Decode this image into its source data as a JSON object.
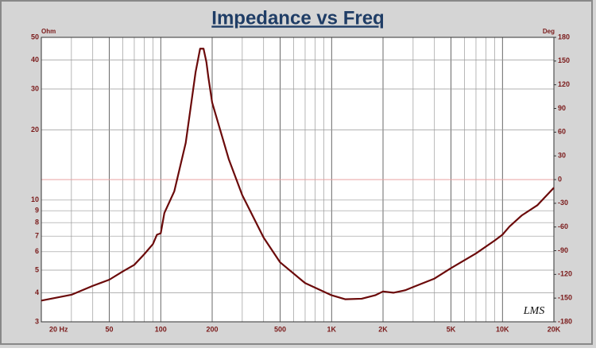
{
  "chart_data": {
    "type": "line",
    "title": "Impedance vs Freq",
    "y_label": "Ohm",
    "y2_label": "Deg",
    "annotation": "LMS",
    "x": [
      20,
      30,
      40,
      50,
      60,
      70,
      80,
      90,
      95,
      100,
      105,
      120,
      140,
      160,
      170,
      178,
      185,
      190,
      200,
      250,
      300,
      400,
      500,
      700,
      1000,
      1200,
      1500,
      1800,
      2000,
      2300,
      2700,
      3000,
      4000,
      5000,
      7000,
      9000,
      10000,
      11000,
      13000,
      16000,
      20000
    ],
    "values": [
      3.7,
      3.92,
      4.28,
      4.55,
      4.94,
      5.27,
      5.85,
      6.47,
      7.1,
      7.2,
      8.8,
      10.9,
      17.6,
      35.5,
      44.7,
      44.7,
      39.2,
      33.7,
      26.2,
      15.0,
      10.5,
      6.9,
      5.4,
      4.4,
      3.9,
      3.75,
      3.77,
      3.9,
      4.05,
      4.0,
      4.1,
      4.23,
      4.6,
      5.1,
      5.9,
      6.7,
      7.1,
      7.7,
      8.6,
      9.5,
      11.3
    ],
    "color": "#6b0a0a",
    "xlim": [
      20,
      20000
    ],
    "x_log": true,
    "xticks": [
      {
        "value": 20,
        "label": "20  Hz"
      },
      50,
      100,
      200,
      500,
      {
        "value": 1000,
        "label": "1K"
      },
      {
        "value": 2000,
        "label": "2K"
      },
      {
        "value": 5000,
        "label": "5K"
      },
      {
        "value": 10000,
        "label": "10K"
      },
      {
        "value": 20000,
        "label": "20K"
      }
    ],
    "x_minor_ticks": [
      30,
      40,
      60,
      70,
      80,
      90,
      300,
      400,
      600,
      700,
      800,
      900,
      3000,
      4000,
      6000,
      7000,
      8000,
      9000
    ],
    "ylim": [
      3,
      50
    ],
    "y_log": true,
    "yticks": [
      3,
      4,
      5,
      6,
      7,
      8,
      9,
      10,
      20,
      30,
      40,
      50
    ],
    "y2lim": [
      -180,
      180
    ],
    "y2ticks": [
      -180,
      -150,
      -120,
      -90,
      -60,
      -30,
      0,
      30,
      60,
      90,
      120,
      150,
      180
    ],
    "reference_line": {
      "axis": "y2",
      "value": 0,
      "color": "#e8a0a0"
    },
    "grid": true
  }
}
